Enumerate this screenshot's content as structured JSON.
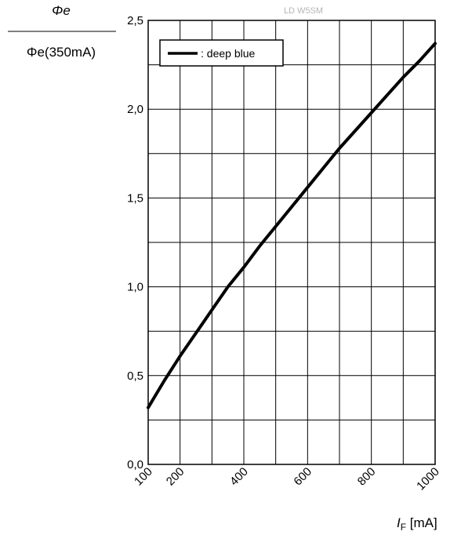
{
  "chart_data": {
    "type": "line",
    "title": "LD W5SM",
    "ylabel_numerator": "Φe",
    "ylabel_denominator": "Φe(350mA)",
    "xlabel": "IF [mA]",
    "xlim": [
      100,
      1000
    ],
    "ylim": [
      0,
      2.5
    ],
    "x_ticks": [
      100,
      200,
      400,
      600,
      800,
      1000
    ],
    "x_tick_labels": [
      "100",
      "200",
      "400",
      "600",
      "800",
      "1000"
    ],
    "y_ticks": [
      0,
      0.5,
      1.0,
      1.5,
      2.0,
      2.5
    ],
    "y_tick_labels": [
      "0,0",
      "0,5",
      "1,0",
      "1,5",
      "2,0",
      "2,5"
    ],
    "grid": true,
    "legend_position": "top-left",
    "series": [
      {
        "name": ": deep blue",
        "color": "#000000",
        "x": [
          100,
          150,
          200,
          250,
          300,
          350,
          400,
          450,
          500,
          550,
          600,
          650,
          700,
          750,
          800,
          850,
          900,
          950,
          1000
        ],
        "y": [
          0.32,
          0.47,
          0.61,
          0.74,
          0.87,
          1.0,
          1.11,
          1.23,
          1.34,
          1.45,
          1.56,
          1.67,
          1.78,
          1.88,
          1.98,
          2.08,
          2.18,
          2.27,
          2.37
        ]
      }
    ]
  }
}
